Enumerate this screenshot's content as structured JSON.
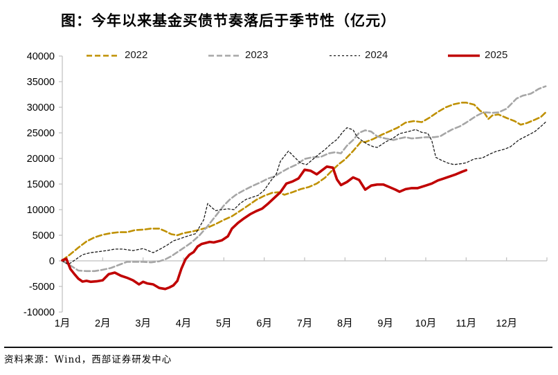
{
  "page": {
    "background": "#ffffff"
  },
  "header": {
    "title": "图：今年以来基金买债节奏落后于季节性（亿元）"
  },
  "source_note": "资料来源：Wind，西部证券研发中心",
  "style": {
    "axis_color": "#bfbfbf",
    "text_color": "#000000"
  },
  "chart_data": {
    "type": "line",
    "title": "图：今年以来基金买债节奏落后于季节性（亿元）",
    "unit": "亿元",
    "legend_position": "top",
    "grid": false,
    "x_axis": {
      "label": "",
      "tick_labels": [
        "1月",
        "2月",
        "3月",
        "4月",
        "5月",
        "6月",
        "7月",
        "8月",
        "9月",
        "10月",
        "11月",
        "12月"
      ],
      "range": [
        1,
        13
      ]
    },
    "y_axis": {
      "label": "",
      "range": [
        -10000,
        40000
      ],
      "step": 5000,
      "tick_values": [
        40000,
        35000,
        30000,
        25000,
        20000,
        15000,
        10000,
        5000,
        0,
        -5000,
        -10000
      ],
      "tick_labels": [
        "40000",
        "35000",
        "30000",
        "25000",
        "20000",
        "15000",
        "10000",
        "5000",
        "0",
        "-5000",
        "-10000"
      ]
    },
    "series": [
      {
        "name": "2022",
        "color": "#bf9000",
        "dash": "8 4",
        "width": 2.6,
        "x": [
          1.0,
          1.2,
          1.4,
          1.6,
          1.8,
          2.0,
          2.2,
          2.4,
          2.6,
          2.8,
          3.0,
          3.2,
          3.4,
          3.55,
          3.7,
          3.85,
          4.0,
          4.2,
          4.4,
          4.6,
          4.8,
          5.0,
          5.2,
          5.45,
          5.6,
          5.8,
          6.0,
          6.2,
          6.35,
          6.5,
          6.7,
          6.9,
          7.1,
          7.3,
          7.5,
          7.7,
          7.85,
          8.0,
          8.2,
          8.4,
          8.5,
          8.7,
          8.9,
          9.1,
          9.3,
          9.5,
          9.7,
          9.9,
          10.1,
          10.3,
          10.5,
          10.7,
          10.9,
          11.0,
          11.2,
          11.35,
          11.45,
          11.55,
          11.65,
          11.8,
          12.0,
          12.2,
          12.35,
          12.5,
          12.7,
          12.85,
          12.97
        ],
        "values": [
          100,
          1300,
          2600,
          3800,
          4600,
          5100,
          5400,
          5600,
          5600,
          6000,
          6100,
          6300,
          6300,
          5800,
          5200,
          5000,
          5400,
          5700,
          6100,
          6500,
          7200,
          8000,
          8700,
          10000,
          10800,
          11900,
          12700,
          13300,
          13400,
          12900,
          13400,
          14000,
          14400,
          15100,
          16200,
          17800,
          18900,
          19800,
          21450,
          23300,
          23200,
          23800,
          24600,
          25300,
          26000,
          27000,
          27300,
          27100,
          28000,
          29100,
          30000,
          30600,
          30900,
          30900,
          30500,
          29300,
          28900,
          27700,
          28400,
          28600,
          27900,
          27300,
          26600,
          26900,
          27550,
          28100,
          29000
        ]
      },
      {
        "name": "2023",
        "color": "#a6a6a6",
        "dash": "8 4",
        "width": 2.6,
        "x": [
          1.0,
          1.2,
          1.4,
          1.6,
          1.8,
          2.0,
          2.2,
          2.4,
          2.6,
          2.8,
          3.0,
          3.2,
          3.4,
          3.55,
          3.7,
          3.85,
          4.0,
          4.2,
          4.4,
          4.6,
          4.8,
          5.0,
          5.15,
          5.3,
          5.5,
          5.7,
          5.9,
          6.1,
          6.25,
          6.4,
          6.6,
          6.8,
          7.0,
          7.2,
          7.4,
          7.6,
          7.75,
          7.9,
          8.05,
          8.2,
          8.35,
          8.5,
          8.65,
          8.8,
          9.0,
          9.2,
          9.35,
          9.5,
          9.65,
          9.8,
          10.0,
          10.2,
          10.35,
          10.5,
          10.65,
          10.85,
          11.0,
          11.25,
          11.4,
          11.5,
          11.65,
          11.8,
          12.0,
          12.25,
          12.4,
          12.6,
          12.8,
          12.97
        ],
        "values": [
          0,
          -900,
          -1900,
          -2000,
          -2000,
          -1750,
          -1400,
          -800,
          -200,
          -200,
          -200,
          -300,
          -100,
          300,
          900,
          1700,
          2500,
          3600,
          5000,
          6800,
          8800,
          10800,
          12000,
          12900,
          13800,
          14600,
          15300,
          16100,
          16450,
          17200,
          18100,
          18800,
          19900,
          20250,
          20300,
          21000,
          21200,
          21000,
          22500,
          23600,
          25000,
          25500,
          25250,
          24300,
          23900,
          23600,
          23900,
          24150,
          23900,
          24000,
          24150,
          24150,
          24300,
          25000,
          25650,
          26300,
          27000,
          28300,
          28900,
          29000,
          28900,
          29000,
          29700,
          31700,
          32250,
          32650,
          33600,
          34100
        ]
      },
      {
        "name": "2024",
        "color": "#1a1a1a",
        "dash": "3 3",
        "width": 1.3,
        "x": [
          1.0,
          1.15,
          1.3,
          1.5,
          1.7,
          1.9,
          2.1,
          2.3,
          2.5,
          2.75,
          3.0,
          3.25,
          3.45,
          3.6,
          3.75,
          3.9,
          4.05,
          4.3,
          4.5,
          4.6,
          4.7,
          4.8,
          4.95,
          5.1,
          5.25,
          5.4,
          5.55,
          5.7,
          5.85,
          6.0,
          6.15,
          6.3,
          6.4,
          6.6,
          6.75,
          6.9,
          7.05,
          7.2,
          7.35,
          7.5,
          7.65,
          7.8,
          7.95,
          8.05,
          8.2,
          8.3,
          8.4,
          8.55,
          8.7,
          8.8,
          9.0,
          9.2,
          9.35,
          9.55,
          9.75,
          9.9,
          10.05,
          10.15,
          10.25,
          10.4,
          10.55,
          10.7,
          10.9,
          11.0,
          11.2,
          11.4,
          11.6,
          11.75,
          11.95,
          12.1,
          12.3,
          12.5,
          12.7,
          12.9,
          12.98
        ],
        "values": [
          0,
          -700,
          100,
          1200,
          1600,
          1800,
          2000,
          2300,
          2300,
          2000,
          2400,
          1600,
          2400,
          3100,
          3900,
          4300,
          4700,
          5300,
          8000,
          11200,
          10400,
          9800,
          10000,
          10150,
          10000,
          11200,
          12000,
          12400,
          12800,
          13800,
          15500,
          17000,
          19450,
          21450,
          20250,
          19100,
          18800,
          19800,
          20800,
          21700,
          22800,
          23700,
          25200,
          26000,
          25600,
          24200,
          23600,
          22800,
          22300,
          22150,
          23200,
          24000,
          24850,
          25200,
          25650,
          25100,
          24900,
          23500,
          20200,
          19600,
          19100,
          18800,
          19000,
          19150,
          19900,
          20100,
          20900,
          21400,
          21800,
          22300,
          23600,
          24400,
          25250,
          26600,
          27200
        ]
      },
      {
        "name": "2025",
        "color": "#c00000",
        "dash": "",
        "width": 3.6,
        "x": [
          1.0,
          1.1,
          1.2,
          1.3,
          1.4,
          1.5,
          1.6,
          1.7,
          1.85,
          2.0,
          2.15,
          2.3,
          2.45,
          2.6,
          2.75,
          2.9,
          3.0,
          3.1,
          3.25,
          3.4,
          3.55,
          3.65,
          3.75,
          3.85,
          3.95,
          4.05,
          4.15,
          4.25,
          4.35,
          4.45,
          4.55,
          4.65,
          4.75,
          4.85,
          4.95,
          5.1,
          5.2,
          5.35,
          5.5,
          5.65,
          5.8,
          5.95,
          6.1,
          6.25,
          6.4,
          6.55,
          6.7,
          6.85,
          7.0,
          7.15,
          7.3,
          7.45,
          7.55,
          7.7,
          7.8,
          7.9,
          8.05,
          8.2,
          8.35,
          8.5,
          8.65,
          8.8,
          8.95,
          9.1,
          9.25,
          9.35,
          9.5,
          9.65,
          9.8,
          10.0,
          10.15,
          10.3,
          10.45,
          10.6,
          10.75,
          10.9,
          11.0
        ],
        "values": [
          100,
          400,
          -1600,
          -2600,
          -3500,
          -4050,
          -3900,
          -4100,
          -4000,
          -3800,
          -2600,
          -2300,
          -2900,
          -3300,
          -3800,
          -4600,
          -4100,
          -4400,
          -4600,
          -5300,
          -5500,
          -5200,
          -4800,
          -3900,
          -1500,
          300,
          1200,
          1700,
          2800,
          3300,
          3500,
          3700,
          3600,
          3800,
          4000,
          4800,
          6300,
          7400,
          8300,
          9100,
          9700,
          10200,
          11200,
          12300,
          13400,
          15100,
          15500,
          16100,
          17800,
          17600,
          16900,
          17800,
          18400,
          18200,
          15900,
          14800,
          15400,
          16300,
          15800,
          13900,
          14700,
          14900,
          14900,
          14400,
          13900,
          13500,
          14000,
          14200,
          14200,
          14700,
          15100,
          15700,
          16100,
          16500,
          16900,
          17400,
          17700
        ]
      }
    ]
  }
}
